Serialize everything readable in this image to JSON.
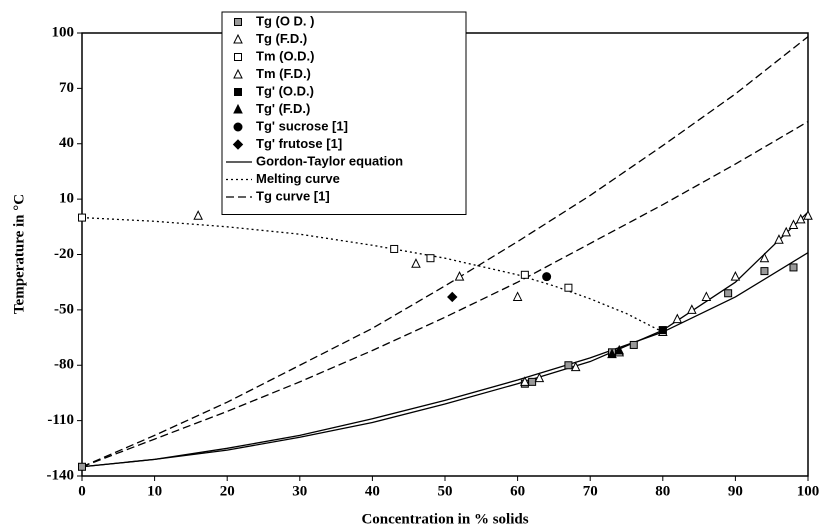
{
  "chart_data": {
    "type": "scatter",
    "x_label": "Concentration in % solids",
    "y_label": "Temperature in °C",
    "xlim": [
      0,
      100
    ],
    "ylim": [
      -140,
      100
    ],
    "xticks": [
      0,
      10,
      20,
      30,
      40,
      50,
      60,
      70,
      80,
      90,
      100
    ],
    "yticks": [
      -140,
      -110,
      -80,
      -50,
      -20,
      10,
      40,
      70,
      100
    ],
    "series": [
      {
        "name": "Tg (O D. )",
        "marker": "square-gray",
        "x": [
          0,
          61,
          62,
          67,
          73,
          76,
          80,
          89,
          94,
          98
        ],
        "values": [
          -135,
          -90,
          -89,
          -80,
          -73,
          -69,
          -61,
          -41,
          -29,
          -27
        ]
      },
      {
        "name": "Tg (F.D.)",
        "marker": "triangle-open",
        "x": [
          61,
          63,
          68,
          74,
          80,
          82,
          84,
          86,
          90,
          94,
          96,
          97,
          98,
          99,
          100
        ],
        "values": [
          -89,
          -87,
          -81,
          -73,
          -62,
          -55,
          -50,
          -43,
          -32,
          -22,
          -12,
          -8,
          -4,
          -1,
          1
        ]
      },
      {
        "name": "Tm (O.D.)",
        "marker": "square-open",
        "x": [
          0,
          43,
          48,
          61,
          67
        ],
        "values": [
          0,
          -17,
          -22,
          -31,
          -38
        ]
      },
      {
        "name": "Tm (F.D.)",
        "marker": "triangle-open",
        "x": [
          16,
          46,
          52,
          60
        ],
        "values": [
          1,
          -25,
          -32,
          -43
        ]
      },
      {
        "name": "Tg' (O.D.)",
        "marker": "square-filled",
        "x": [
          80
        ],
        "values": [
          -61
        ]
      },
      {
        "name": "Tg' (F.D.)",
        "marker": "triangle-filled",
        "x": [
          73,
          74
        ],
        "values": [
          -74,
          -72
        ]
      },
      {
        "name": "Tg' sucrose [1]",
        "marker": "circle-filled",
        "x": [
          64
        ],
        "values": [
          -32
        ]
      },
      {
        "name": "Tg' frutose [1]",
        "marker": "diamond-filled",
        "x": [
          51
        ],
        "values": [
          -43
        ]
      },
      {
        "name": "Gordon-Taylor equation",
        "line": "solid",
        "curves": [
          {
            "x": [
              0,
              10,
              20,
              30,
              40,
              50,
              60,
              70,
              80,
              90,
              100
            ],
            "values": [
              -135,
              -131,
              -126,
              -119,
              -111,
              -101,
              -90,
              -78,
              -61,
              -35,
              3
            ]
          },
          {
            "x": [
              0,
              10,
              20,
              30,
              40,
              50,
              60,
              70,
              80,
              90,
              100
            ],
            "values": [
              -135,
              -131,
              -125,
              -118,
              -109,
              -99,
              -88,
              -76,
              -62,
              -43,
              -19
            ]
          }
        ]
      },
      {
        "name": "Melting curve",
        "line": "dotted",
        "curves": [
          {
            "x": [
              0,
              10,
              20,
              30,
              40,
              50,
              60,
              65,
              70,
              75,
              80
            ],
            "values": [
              0,
              -2,
              -5,
              -9,
              -15,
              -22,
              -31,
              -37,
              -44,
              -52,
              -62
            ]
          }
        ]
      },
      {
        "name": "Tg curve [1]",
        "line": "dashed",
        "curves": [
          {
            "x": [
              0,
              10,
              20,
              30,
              40,
              50,
              60,
              70,
              80,
              90,
              100
            ],
            "values": [
              -135,
              -118,
              -100,
              -80,
              -60,
              -37,
              -13,
              12,
              39,
              67,
              98
            ]
          },
          {
            "x": [
              0,
              10,
              20,
              30,
              40,
              50,
              60,
              70,
              80,
              90,
              100
            ],
            "values": [
              -135,
              -120,
              -105,
              -89,
              -72,
              -54,
              -35,
              -14,
              7,
              29,
              52
            ]
          }
        ]
      }
    ]
  }
}
